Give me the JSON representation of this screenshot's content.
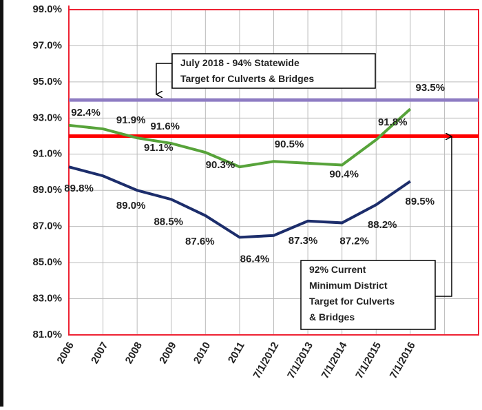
{
  "chart_data": {
    "type": "line",
    "categories": [
      "2006",
      "2007",
      "2008",
      "2009",
      "2010",
      "2011",
      "7/1/2012",
      "7/1/2013",
      "7/1/2014",
      "7/1/2015",
      "7/1/2016",
      null,
      null
    ],
    "series": [
      {
        "color": "#57a33a",
        "values": [
          92.6,
          92.4,
          91.9,
          91.6,
          91.1,
          90.3,
          90.6,
          90.5,
          90.4,
          91.8,
          93.5,
          null,
          null
        ],
        "value_labels": [
          null,
          "92.4%",
          "91.9%",
          "91.6%",
          "91.1%",
          "90.3%",
          null,
          "90.5%",
          "90.4%",
          "91.8%",
          "93.5%",
          null,
          null
        ]
      },
      {
        "color": "#1c2d6b",
        "values": [
          90.3,
          89.8,
          89.0,
          88.5,
          87.6,
          86.4,
          86.5,
          87.3,
          87.2,
          88.2,
          89.5,
          null,
          null
        ],
        "value_labels": [
          null,
          "89.8%",
          "89.0%",
          "88.5%",
          "87.6%",
          "86.4%",
          null,
          "87.3%",
          "87.2%",
          "88.2%",
          "89.5%",
          null,
          null
        ]
      }
    ],
    "reference_lines": [
      {
        "value": 94,
        "color": "#8e7cc3"
      },
      {
        "value": 92,
        "color": "#ff0000"
      }
    ],
    "annotations": [
      {
        "lines": [
          "July 2018 - 94%  Statewide",
          "Target for Culverts & Bridges"
        ]
      },
      {
        "lines": [
          "92% Current",
          "Minimum  District",
          "Target for Culverts",
          "& Bridges"
        ]
      }
    ],
    "ylim": [
      81,
      99
    ],
    "yticks": [
      {
        "value": 81,
        "label": "81.0%"
      },
      {
        "value": 83,
        "label": "83.0%"
      },
      {
        "value": 85,
        "label": "85.0%"
      },
      {
        "value": 87,
        "label": "87.0%"
      },
      {
        "value": 89,
        "label": "89.0%"
      },
      {
        "value": 91,
        "label": "91.0%"
      },
      {
        "value": 93,
        "label": "93.0%"
      },
      {
        "value": 95,
        "label": "95.0%"
      },
      {
        "value": 97,
        "label": "97.0%"
      },
      {
        "value": 99,
        "label": "99.0%"
      }
    ],
    "grid": true
  }
}
